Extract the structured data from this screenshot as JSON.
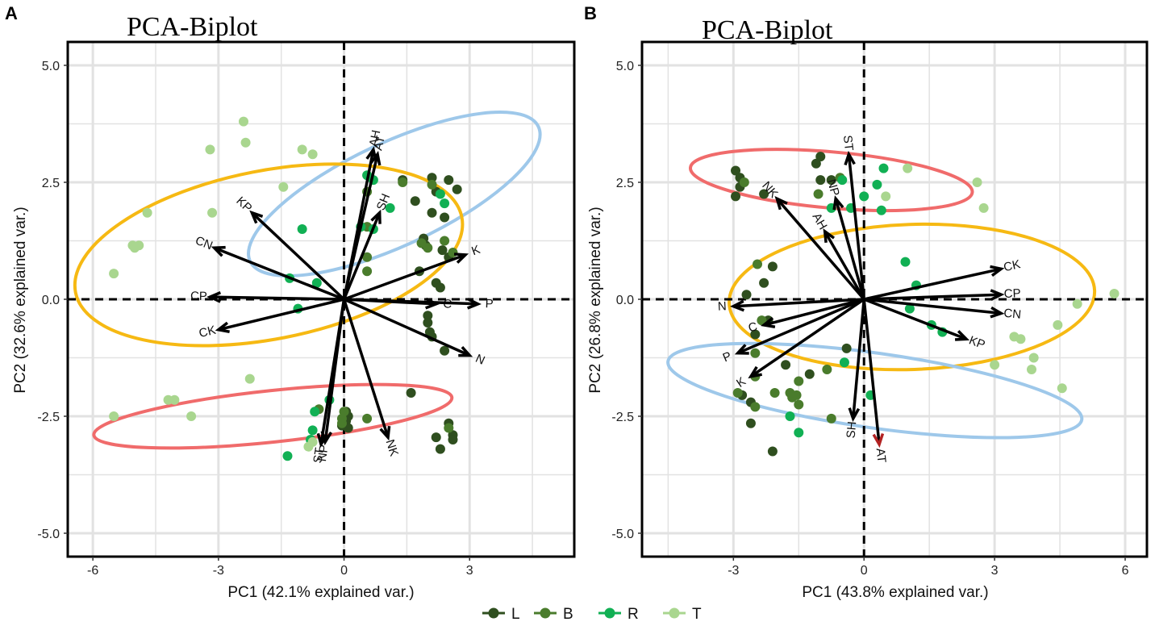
{
  "colors": {
    "L": "#2f4f1f",
    "B": "#4a7c2c",
    "R": "#11b054",
    "T": "#a9d68f",
    "ellipse_red": "#f06b6b",
    "ellipse_blue": "#9ec8ea",
    "ellipse_yellow": "#f6b913",
    "arrow": "#000000",
    "arrow_highlight": "#b22222"
  },
  "legend": {
    "items": [
      {
        "key": "L",
        "label": "L"
      },
      {
        "key": "B",
        "label": "B"
      },
      {
        "key": "R",
        "label": "R"
      },
      {
        "key": "T",
        "label": "T"
      }
    ]
  },
  "chart_data": [
    {
      "type": "scatter",
      "panel": "A",
      "title": "PCA-Biplot",
      "xlabel": "PC1 (42.1% explained var.)",
      "ylabel": "PC2 (32.6% explained var.)",
      "xlim": [
        -6.6,
        5.5
      ],
      "ylim": [
        -5.5,
        5.5
      ],
      "xticks": [
        -6,
        -3,
        0,
        3
      ],
      "xtick_labels": [
        "-6",
        "-3",
        "0",
        "3"
      ],
      "yticks": [
        5,
        2.5,
        0,
        -2.5,
        -5
      ],
      "ytick_labels": [
        "5.0",
        "2.5",
        "0.0",
        "-2.5",
        "-5.0"
      ],
      "loadings": [
        {
          "label": "AH",
          "x": 0.7,
          "y": 3.2
        },
        {
          "label": "AT",
          "x": 0.8,
          "y": 3.1
        },
        {
          "label": "SH",
          "x": 0.85,
          "y": 1.85
        },
        {
          "label": "KP",
          "x": -2.2,
          "y": 1.85
        },
        {
          "label": "CN",
          "x": -3.1,
          "y": 1.1
        },
        {
          "label": "CP",
          "x": -3.2,
          "y": 0.05
        },
        {
          "label": "CK",
          "x": -3.0,
          "y": -0.65
        },
        {
          "label": "K",
          "x": 2.9,
          "y": 0.95
        },
        {
          "label": "C",
          "x": 2.2,
          "y": -0.1
        },
        {
          "label": "P",
          "x": 3.2,
          "y": -0.1
        },
        {
          "label": "N",
          "x": 3.0,
          "y": -1.2
        },
        {
          "label": "NP",
          "x": -0.45,
          "y": -3.05
        },
        {
          "label": "ST",
          "x": -0.55,
          "y": -3.1
        },
        {
          "label": "NK",
          "x": 1.05,
          "y": -2.95
        }
      ],
      "ellipses": [
        {
          "group": "blue",
          "cx": 1.2,
          "cy": 2.25,
          "rx": 3.8,
          "ry": 1.1,
          "angle_deg": -25
        },
        {
          "group": "yellow",
          "cx": -1.8,
          "cy": 0.95,
          "rx": 4.7,
          "ry": 1.8,
          "angle_deg": -11
        },
        {
          "group": "red",
          "cx": -1.7,
          "cy": -2.5,
          "rx": 4.3,
          "ry": 0.55,
          "angle_deg": -6
        }
      ],
      "series": [
        {
          "name": "L",
          "points": [
            [
              2.1,
              2.6
            ],
            [
              2.5,
              2.55
            ],
            [
              1.4,
              2.55
            ],
            [
              2.7,
              2.35
            ],
            [
              2.2,
              2.3
            ],
            [
              1.7,
              2.1
            ],
            [
              2.1,
              1.85
            ],
            [
              2.4,
              1.75
            ],
            [
              1.9,
              1.3
            ],
            [
              1.95,
              1.15
            ],
            [
              2.35,
              1.05
            ],
            [
              2.5,
              0.9
            ],
            [
              1.8,
              0.6
            ],
            [
              2.2,
              0.35
            ],
            [
              2.3,
              0.25
            ],
            [
              2.0,
              -0.35
            ],
            [
              2.0,
              -0.5
            ],
            [
              2.05,
              -0.7
            ],
            [
              2.1,
              -0.8
            ],
            [
              2.4,
              -1.1
            ],
            [
              1.6,
              -2.0
            ],
            [
              0.05,
              -2.4
            ],
            [
              0.1,
              -2.5
            ],
            [
              0.05,
              -2.6
            ],
            [
              -0.05,
              -2.7
            ],
            [
              0.1,
              -2.75
            ],
            [
              2.5,
              -2.65
            ],
            [
              2.6,
              -2.9
            ],
            [
              2.2,
              -2.95
            ],
            [
              2.6,
              -3.0
            ],
            [
              2.3,
              -3.2
            ]
          ]
        },
        {
          "name": "B",
          "points": [
            [
              1.4,
              2.5
            ],
            [
              0.55,
              2.3
            ],
            [
              2.1,
              2.45
            ],
            [
              2.6,
              1.0
            ],
            [
              2.0,
              1.1
            ],
            [
              2.4,
              1.25
            ],
            [
              0.55,
              1.55
            ],
            [
              0.55,
              0.9
            ],
            [
              0.55,
              0.6
            ],
            [
              1.85,
              1.2
            ],
            [
              0.55,
              -2.55
            ],
            [
              0.0,
              -2.4
            ],
            [
              -0.05,
              -2.65
            ],
            [
              -0.6,
              -2.35
            ],
            [
              2.5,
              -2.75
            ],
            [
              -0.05,
              -2.55
            ]
          ]
        },
        {
          "name": "R",
          "points": [
            [
              0.55,
              2.65
            ],
            [
              0.7,
              2.55
            ],
            [
              1.1,
              1.95
            ],
            [
              2.3,
              2.25
            ],
            [
              2.4,
              2.05
            ],
            [
              0.4,
              1.55
            ],
            [
              0.7,
              1.5
            ],
            [
              -1.0,
              1.5
            ],
            [
              -1.3,
              0.45
            ],
            [
              -0.65,
              0.35
            ],
            [
              -1.1,
              -0.2
            ],
            [
              -0.35,
              -2.15
            ],
            [
              -0.7,
              -2.4
            ],
            [
              -0.75,
              -2.8
            ],
            [
              -0.8,
              -3.0
            ],
            [
              -1.35,
              -3.35
            ]
          ]
        },
        {
          "name": "T",
          "points": [
            [
              -2.4,
              3.8
            ],
            [
              -2.35,
              3.35
            ],
            [
              -3.2,
              3.2
            ],
            [
              -0.75,
              3.1
            ],
            [
              -1.0,
              3.2
            ],
            [
              -1.45,
              2.4
            ],
            [
              -4.7,
              1.85
            ],
            [
              -3.15,
              1.85
            ],
            [
              -4.9,
              1.15
            ],
            [
              -5.05,
              1.15
            ],
            [
              -5.0,
              1.1
            ],
            [
              -5.5,
              0.55
            ],
            [
              -2.25,
              -1.7
            ],
            [
              -4.2,
              -2.15
            ],
            [
              -4.05,
              -2.15
            ],
            [
              -3.65,
              -2.5
            ],
            [
              -5.5,
              -2.5
            ],
            [
              -0.75,
              -3.05
            ],
            [
              -0.85,
              -3.15
            ]
          ]
        }
      ]
    },
    {
      "type": "scatter",
      "panel": "B",
      "title": "PCA-Biplot",
      "xlabel": "PC1 (43.8% explained var.)",
      "ylabel": "PC2 (26.8% explained var.)",
      "xlim": [
        -5.1,
        6.5
      ],
      "ylim": [
        -5.5,
        5.5
      ],
      "xticks": [
        -3,
        0,
        3,
        6
      ],
      "xtick_labels": [
        "-3",
        "0",
        "3",
        "6"
      ],
      "yticks": [
        5,
        2.5,
        0,
        -2.5,
        -5
      ],
      "ytick_labels": [
        "5.0",
        "2.5",
        "0.0",
        "-2.5",
        "-5.0"
      ],
      "loadings": [
        {
          "label": "ST",
          "x": -0.35,
          "y": 3.1
        },
        {
          "label": "NP",
          "x": -0.65,
          "y": 2.15
        },
        {
          "label": "NK",
          "x": -2.0,
          "y": 2.15
        },
        {
          "label": "AH",
          "x": -0.9,
          "y": 1.45
        },
        {
          "label": "CK",
          "x": 3.15,
          "y": 0.65
        },
        {
          "label": "CP",
          "x": 3.15,
          "y": 0.1
        },
        {
          "label": "CN",
          "x": 3.15,
          "y": -0.3
        },
        {
          "label": "KP",
          "x": 2.35,
          "y": -0.85
        },
        {
          "label": "N",
          "x": -3.0,
          "y": -0.15
        },
        {
          "label": "C",
          "x": -2.3,
          "y": -0.55
        },
        {
          "label": "P",
          "x": -2.9,
          "y": -1.15
        },
        {
          "label": "K",
          "x": -2.6,
          "y": -1.65
        },
        {
          "label": "SH",
          "x": -0.25,
          "y": -2.55
        },
        {
          "label": "AT",
          "x": 0.35,
          "y": -3.1
        }
      ],
      "ellipses": [
        {
          "group": "red",
          "cx": -0.75,
          "cy": 2.55,
          "rx": 3.25,
          "ry": 0.6,
          "angle_deg": 5
        },
        {
          "group": "yellow",
          "cx": 1.1,
          "cy": 0.05,
          "rx": 4.2,
          "ry": 1.55,
          "angle_deg": -2
        },
        {
          "group": "blue",
          "cx": 0.25,
          "cy": -1.95,
          "rx": 4.8,
          "ry": 0.8,
          "angle_deg": 8
        }
      ],
      "series": [
        {
          "name": "L",
          "points": [
            [
              -2.95,
              2.75
            ],
            [
              -2.85,
              2.6
            ],
            [
              -2.85,
              2.4
            ],
            [
              -2.95,
              2.2
            ],
            [
              -2.3,
              2.25
            ],
            [
              -1.0,
              3.05
            ],
            [
              -1.1,
              2.9
            ],
            [
              -0.75,
              2.55
            ],
            [
              -1.0,
              2.55
            ],
            [
              -2.1,
              0.7
            ],
            [
              -2.3,
              0.35
            ],
            [
              -2.7,
              0.1
            ],
            [
              -2.2,
              -0.45
            ],
            [
              -2.5,
              -0.75
            ],
            [
              -1.8,
              -1.4
            ],
            [
              -1.25,
              -1.6
            ],
            [
              -0.4,
              -1.05
            ],
            [
              -2.8,
              -2.05
            ],
            [
              -2.6,
              -2.2
            ],
            [
              -2.6,
              -2.65
            ],
            [
              -2.1,
              -3.25
            ]
          ]
        },
        {
          "name": "B",
          "points": [
            [
              -2.75,
              2.5
            ],
            [
              -1.05,
              2.25
            ],
            [
              -0.55,
              2.6
            ],
            [
              -2.45,
              0.75
            ],
            [
              -2.35,
              -0.45
            ],
            [
              -2.5,
              -1.15
            ],
            [
              -1.5,
              -1.75
            ],
            [
              -1.7,
              -2.0
            ],
            [
              -1.65,
              -2.1
            ],
            [
              -2.5,
              -2.3
            ],
            [
              -2.5,
              -1.65
            ],
            [
              -2.9,
              -2.0
            ],
            [
              -2.05,
              -2.0
            ],
            [
              -1.5,
              -2.25
            ],
            [
              -0.85,
              -1.5
            ],
            [
              -1.55,
              -2.05
            ],
            [
              -0.75,
              -2.55
            ]
          ]
        },
        {
          "name": "R",
          "points": [
            [
              0.45,
              2.8
            ],
            [
              -0.5,
              2.55
            ],
            [
              0.3,
              2.45
            ],
            [
              -0.75,
              1.95
            ],
            [
              -0.3,
              1.95
            ],
            [
              0.0,
              2.2
            ],
            [
              0.4,
              1.9
            ],
            [
              0.95,
              0.8
            ],
            [
              1.2,
              0.3
            ],
            [
              1.05,
              -0.2
            ],
            [
              1.55,
              -0.55
            ],
            [
              1.8,
              -0.7
            ],
            [
              0.15,
              -2.05
            ],
            [
              -1.7,
              -2.5
            ],
            [
              -1.5,
              -2.85
            ],
            [
              -0.45,
              -1.35
            ]
          ]
        },
        {
          "name": "T",
          "points": [
            [
              1.0,
              2.8
            ],
            [
              0.5,
              2.2
            ],
            [
              2.6,
              2.5
            ],
            [
              2.75,
              1.95
            ],
            [
              5.75,
              0.12
            ],
            [
              4.9,
              -0.1
            ],
            [
              4.45,
              -0.55
            ],
            [
              3.45,
              -0.8
            ],
            [
              3.6,
              -0.85
            ],
            [
              3.9,
              -1.25
            ],
            [
              3.85,
              -1.5
            ],
            [
              3.0,
              -1.4
            ],
            [
              4.55,
              -1.9
            ]
          ]
        }
      ]
    }
  ]
}
